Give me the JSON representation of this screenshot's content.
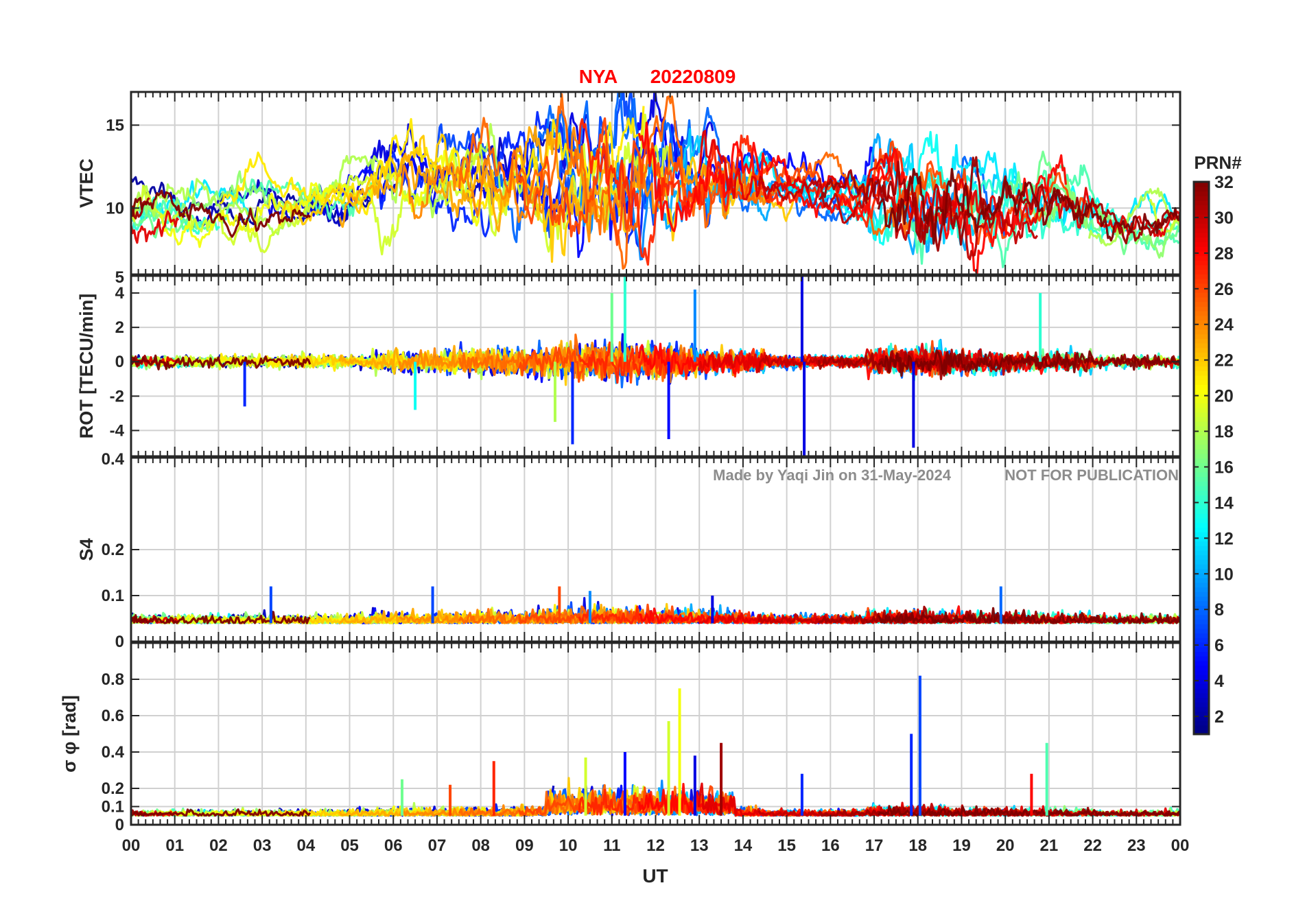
{
  "figure": {
    "title_station": "NYA",
    "title_date": "20220809",
    "title_color": "#ff0000",
    "watermark_author": "Made by Yaqi Jin on 31-May-2024",
    "watermark_notice": "NOT FOR PUBLICATION",
    "x_axis_label": "UT",
    "x_tick_labels": [
      "00",
      "01",
      "02",
      "03",
      "04",
      "05",
      "06",
      "07",
      "08",
      "09",
      "10",
      "11",
      "12",
      "13",
      "14",
      "15",
      "16",
      "17",
      "18",
      "19",
      "20",
      "21",
      "22",
      "23",
      "00"
    ]
  },
  "colorbar": {
    "title": "PRN#",
    "colormap": "jet",
    "range": [
      1,
      32
    ],
    "tick_labels": [
      "2",
      "4",
      "6",
      "8",
      "10",
      "12",
      "14",
      "16",
      "18",
      "20",
      "22",
      "24",
      "26",
      "28",
      "30",
      "32"
    ]
  },
  "chart_data": [
    {
      "type": "line",
      "panel": "vtec",
      "ylabel": "VTEC",
      "xlim": [
        0,
        24
      ],
      "ylim": [
        6,
        17
      ],
      "yticks": [
        10,
        15
      ],
      "grid": true,
      "series_description_values": {
        "baseline_by_hour": [
          [
            0,
            10
          ],
          [
            2,
            10
          ],
          [
            4,
            10
          ],
          [
            6,
            11.5
          ],
          [
            8,
            12
          ],
          [
            10,
            12
          ],
          [
            11,
            12.5
          ],
          [
            12,
            12
          ],
          [
            13,
            12
          ],
          [
            14,
            12
          ],
          [
            15,
            11.5
          ],
          [
            16,
            11
          ],
          [
            17,
            10.5
          ],
          [
            18,
            10.5
          ],
          [
            20,
            10
          ],
          [
            21,
            10.5
          ],
          [
            22,
            9.5
          ],
          [
            23,
            9
          ],
          [
            24,
            9
          ]
        ],
        "peak_value": 17,
        "peak_hour": 11.2
      }
    },
    {
      "type": "line",
      "panel": "rot",
      "ylabel": "ROT [TECU/min]",
      "xlim": [
        0,
        24
      ],
      "ylim": [
        -5.5,
        5
      ],
      "yticks": [
        -4,
        -2,
        0,
        2,
        4
      ],
      "ytick_top_label": "5",
      "grid": true,
      "spikes": [
        {
          "x": 10.1,
          "y": -4.8,
          "prn": 6
        },
        {
          "x": 11.3,
          "y": 5,
          "prn": 14
        },
        {
          "x": 11.0,
          "y": 4,
          "prn": 16
        },
        {
          "x": 12.3,
          "y": -4.5,
          "prn": 5
        },
        {
          "x": 12.9,
          "y": 4.2,
          "prn": 9
        },
        {
          "x": 15.35,
          "y": 5,
          "prn": 4
        },
        {
          "x": 15.4,
          "y": -5.5,
          "prn": 4
        },
        {
          "x": 17.9,
          "y": -5,
          "prn": 4
        },
        {
          "x": 20.8,
          "y": 4,
          "prn": 14
        },
        {
          "x": 6.5,
          "y": -2.8,
          "prn": 13
        },
        {
          "x": 2.6,
          "y": -2.6,
          "prn": 6
        },
        {
          "x": 9.7,
          "y": -3.5,
          "prn": 18
        }
      ]
    },
    {
      "type": "line",
      "panel": "s4",
      "ylabel": "S4",
      "xlim": [
        0,
        24
      ],
      "ylim": [
        0,
        0.4
      ],
      "yticks": [
        0,
        0.1,
        0.2
      ],
      "ytick_top_label": "0.4",
      "grid": true,
      "typical_level": 0.04,
      "spikes": [
        {
          "x": 3.2,
          "y": 0.12,
          "prn": 7
        },
        {
          "x": 6.9,
          "y": 0.12,
          "prn": 7
        },
        {
          "x": 9.8,
          "y": 0.12,
          "prn": 26
        },
        {
          "x": 10.5,
          "y": 0.11,
          "prn": 9
        },
        {
          "x": 19.9,
          "y": 0.12,
          "prn": 8
        },
        {
          "x": 13.3,
          "y": 0.1,
          "prn": 4
        }
      ]
    },
    {
      "type": "line",
      "panel": "sigma_phi",
      "ylabel": "σ φ [rad]",
      "xlim": [
        0,
        24
      ],
      "ylim": [
        0,
        1
      ],
      "yticks": [
        0,
        0.1,
        0.2,
        0.4,
        0.6,
        0.8
      ],
      "grid": true,
      "typical_level": 0.05,
      "spikes": [
        {
          "x": 18.05,
          "y": 0.82,
          "prn": 7
        },
        {
          "x": 12.55,
          "y": 0.75,
          "prn": 20
        },
        {
          "x": 12.3,
          "y": 0.57,
          "prn": 19
        },
        {
          "x": 17.85,
          "y": 0.5,
          "prn": 6
        },
        {
          "x": 13.5,
          "y": 0.45,
          "prn": 31
        },
        {
          "x": 20.95,
          "y": 0.45,
          "prn": 15
        },
        {
          "x": 11.3,
          "y": 0.4,
          "prn": 5
        },
        {
          "x": 8.3,
          "y": 0.35,
          "prn": 27
        },
        {
          "x": 12.9,
          "y": 0.38,
          "prn": 4
        },
        {
          "x": 10.4,
          "y": 0.37,
          "prn": 19
        },
        {
          "x": 15.35,
          "y": 0.28,
          "prn": 6
        },
        {
          "x": 20.6,
          "y": 0.28,
          "prn": 28
        },
        {
          "x": 6.2,
          "y": 0.25,
          "prn": 16
        },
        {
          "x": 7.3,
          "y": 0.22,
          "prn": 26
        }
      ]
    }
  ]
}
